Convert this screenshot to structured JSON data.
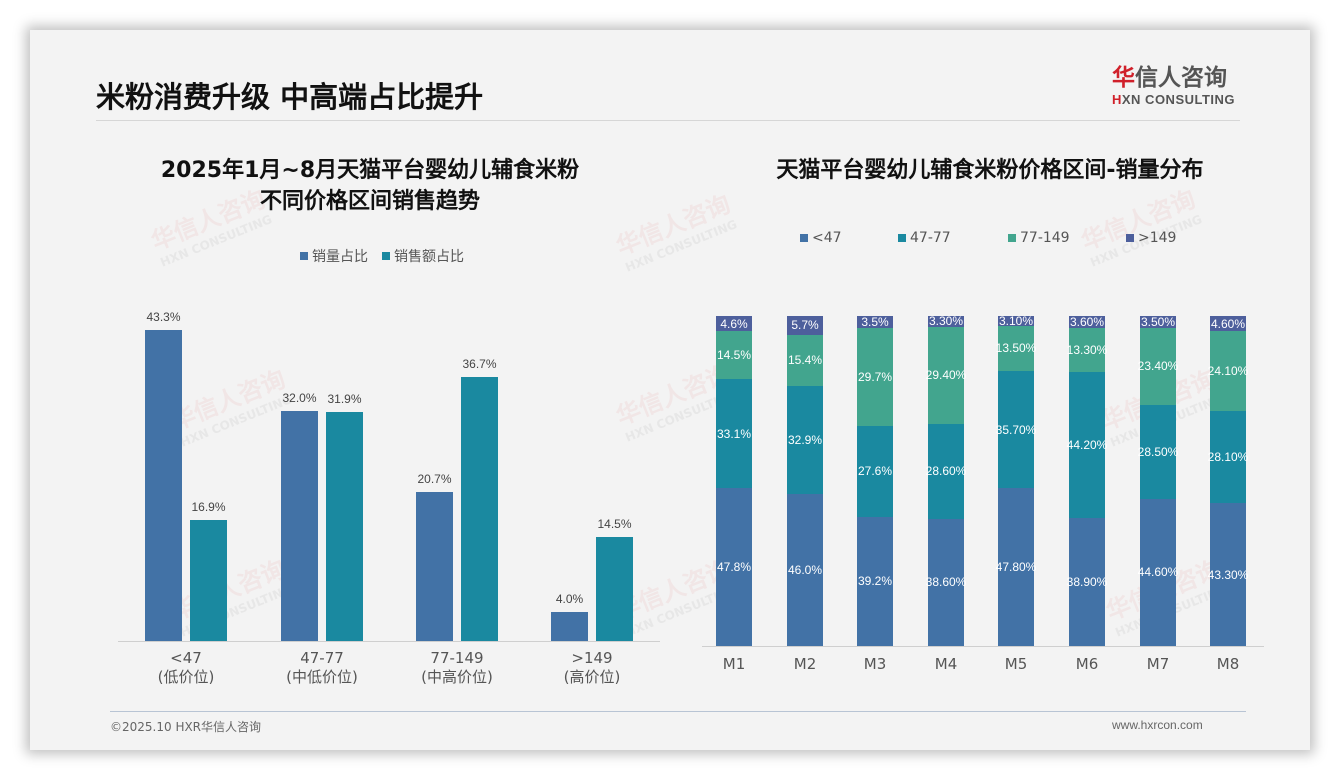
{
  "header": {
    "title": "米粉消费升级 中高端占比提升",
    "logo_cn_first": "华",
    "logo_cn_rest": "信人咨询",
    "logo_en_first": "H",
    "logo_en_rest": "XN CONSULTING"
  },
  "watermark": {
    "cn": "华信人咨询",
    "en": "HXN CONSULTING"
  },
  "footer": {
    "copyright": "©2025.10 HXR华信人咨询",
    "url": "www.hxrcon.com"
  },
  "colors": {
    "blue": "#4272a6",
    "teal": "#1a89a0",
    "green": "#42a58e",
    "indigo": "#4d5f9c"
  },
  "chart_data": [
    {
      "type": "bar",
      "title_line1": "2025年1月~8月天猫平台婴幼儿辅食米粉",
      "title_line2": "不同价格区间销售趋势",
      "categories": [
        "<47",
        "47-77",
        "77-149",
        ">149"
      ],
      "category_sublabels": [
        "(低价位)",
        "(中低价位)",
        "(中高价位)",
        "(高价位)"
      ],
      "series": [
        {
          "name": "销量占比",
          "values": [
            43.3,
            32.0,
            20.7,
            4.0
          ],
          "labels": [
            "43.3%",
            "32.0%",
            "20.7%",
            "4.0%"
          ]
        },
        {
          "name": "销售额占比",
          "values": [
            16.9,
            31.9,
            36.7,
            14.5
          ],
          "labels": [
            "16.9%",
            "31.9%",
            "36.7%",
            "14.5%"
          ]
        }
      ],
      "legend_position": "top",
      "grid": false,
      "xlabel": "",
      "ylabel": ""
    },
    {
      "type": "bar",
      "stacked": true,
      "title": "天猫平台婴幼儿辅食米粉价格区间-销量分布",
      "categories": [
        "M1",
        "M2",
        "M3",
        "M4",
        "M5",
        "M6",
        "M7",
        "M8"
      ],
      "series": [
        {
          "name": "<47",
          "values": [
            47.8,
            46.0,
            39.2,
            38.6,
            47.8,
            38.9,
            44.6,
            43.3
          ],
          "labels": [
            "47.8%",
            "46.0%",
            "39.2%",
            "38.60%",
            "47.80%",
            "38.90%",
            "44.60%",
            "43.30%"
          ]
        },
        {
          "name": "47-77",
          "values": [
            33.1,
            32.9,
            27.6,
            28.6,
            35.7,
            44.2,
            28.5,
            28.1
          ],
          "labels": [
            "33.1%",
            "32.9%",
            "27.6%",
            "28.60%",
            "35.70%",
            "44.20%",
            "28.50%",
            "28.10%"
          ]
        },
        {
          "name": "77-149",
          "values": [
            14.5,
            15.4,
            29.7,
            29.4,
            13.5,
            13.3,
            23.4,
            24.1
          ],
          "labels": [
            "14.5%",
            "15.4%",
            "29.7%",
            "29.40%",
            "13.50%",
            "13.30%",
            "23.40%",
            "24.10%"
          ]
        },
        {
          "name": ">149",
          "values": [
            4.6,
            5.7,
            3.5,
            3.3,
            3.1,
            3.6,
            3.5,
            4.6
          ],
          "labels": [
            "4.6%",
            "5.7%",
            "3.5%",
            "3.30%",
            "3.10%",
            "3.60%",
            "3.50%",
            "4.60%"
          ]
        }
      ],
      "legend_position": "top",
      "ylim": [
        0,
        100
      ],
      "grid": false,
      "xlabel": "",
      "ylabel": ""
    }
  ]
}
